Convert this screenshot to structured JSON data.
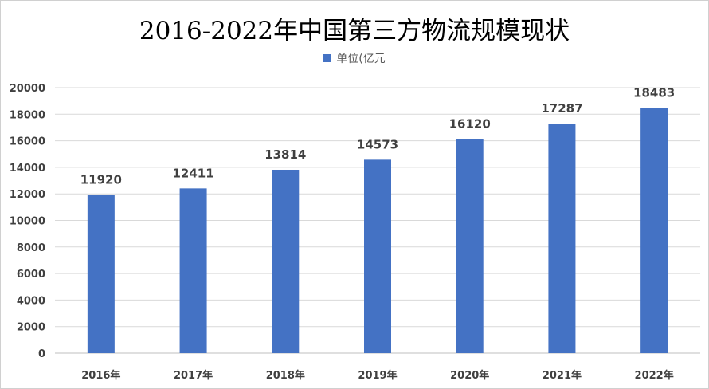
{
  "chart_data": {
    "type": "bar",
    "title": "2016-2022年中国第三方物流规模现状",
    "legend": "单位(亿元",
    "legend_position": "top",
    "categories": [
      "2016年",
      "2017年",
      "2018年",
      "2019年",
      "2020年",
      "2021年",
      "2022年"
    ],
    "series": [
      {
        "name": "单位(亿元",
        "values": [
          11920,
          12411,
          13814,
          14573,
          16120,
          17287,
          18483
        ]
      }
    ],
    "ylim": [
      0,
      20000
    ],
    "yticks": [
      0,
      2000,
      4000,
      6000,
      8000,
      10000,
      12000,
      14000,
      16000,
      18000,
      20000
    ],
    "grid": true,
    "bar_color": "#4472c4"
  }
}
